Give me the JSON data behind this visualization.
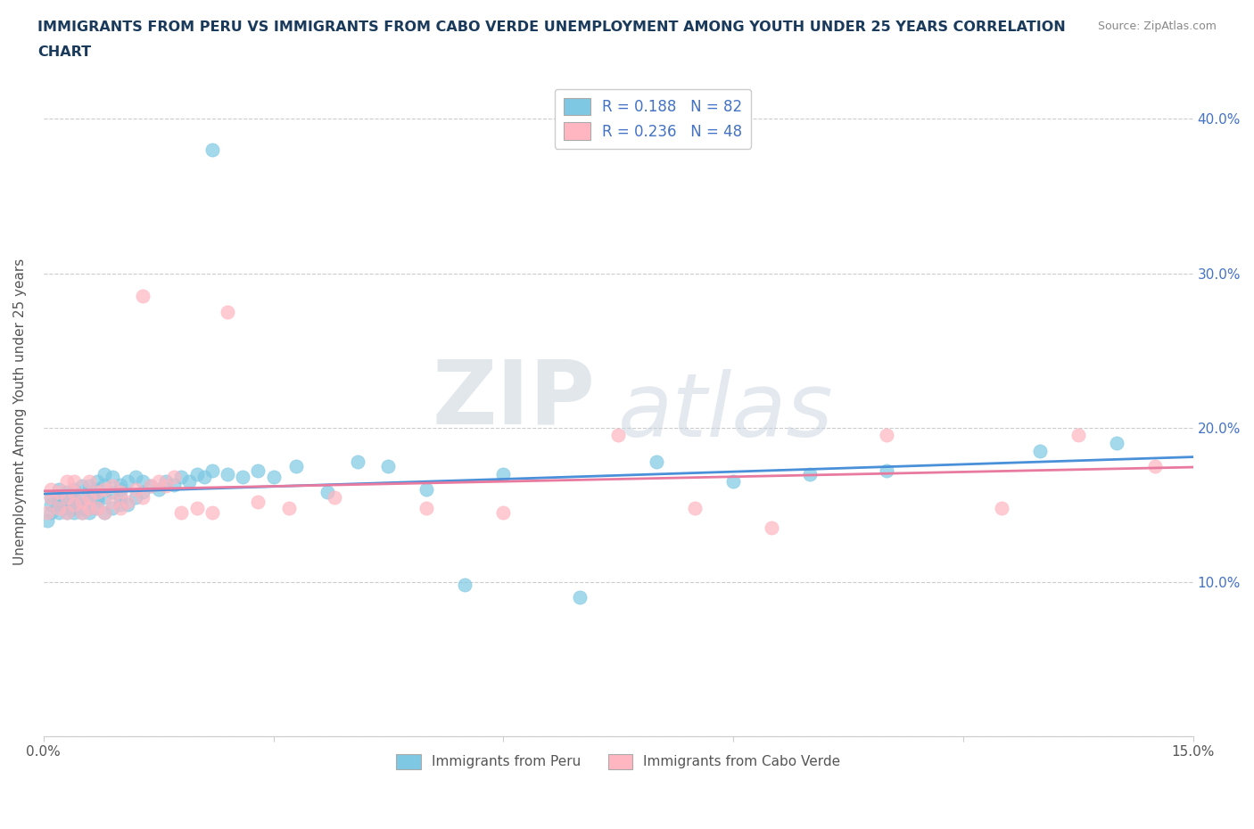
{
  "title_line1": "IMMIGRANTS FROM PERU VS IMMIGRANTS FROM CABO VERDE UNEMPLOYMENT AMONG YOUTH UNDER 25 YEARS CORRELATION",
  "title_line2": "CHART",
  "source": "Source: ZipAtlas.com",
  "ylabel": "Unemployment Among Youth under 25 years",
  "xlim": [
    0.0,
    0.15
  ],
  "ylim": [
    0.0,
    0.42
  ],
  "xtick_positions": [
    0.0,
    0.03,
    0.06,
    0.09,
    0.12,
    0.15
  ],
  "ytick_positions": [
    0.0,
    0.1,
    0.2,
    0.3,
    0.4
  ],
  "peru_R": 0.188,
  "peru_N": 82,
  "cabo_R": 0.236,
  "cabo_N": 48,
  "peru_color": "#7ec8e3",
  "cabo_color": "#ffb6c1",
  "peru_line_color": "#4a90d9",
  "cabo_line_color": "#e87a9f",
  "watermark_zip": "ZIP",
  "watermark_atlas": "atlas",
  "peru_scatter_x": [
    0.0005,
    0.001,
    0.001,
    0.001,
    0.002,
    0.002,
    0.002,
    0.002,
    0.002,
    0.002,
    0.003,
    0.003,
    0.003,
    0.003,
    0.003,
    0.003,
    0.004,
    0.004,
    0.004,
    0.004,
    0.004,
    0.004,
    0.005,
    0.005,
    0.005,
    0.005,
    0.005,
    0.006,
    0.006,
    0.006,
    0.006,
    0.006,
    0.007,
    0.007,
    0.007,
    0.007,
    0.007,
    0.008,
    0.008,
    0.008,
    0.008,
    0.009,
    0.009,
    0.009,
    0.01,
    0.01,
    0.01,
    0.01,
    0.011,
    0.011,
    0.012,
    0.012,
    0.013,
    0.013,
    0.014,
    0.015,
    0.016,
    0.017,
    0.018,
    0.019,
    0.02,
    0.021,
    0.022,
    0.024,
    0.026,
    0.028,
    0.03,
    0.033,
    0.037,
    0.041,
    0.045,
    0.05,
    0.055,
    0.06,
    0.07,
    0.08,
    0.09,
    0.1,
    0.11,
    0.13,
    0.14,
    0.022
  ],
  "peru_scatter_y": [
    0.14,
    0.15,
    0.155,
    0.145,
    0.15,
    0.155,
    0.145,
    0.15,
    0.16,
    0.155,
    0.148,
    0.153,
    0.158,
    0.145,
    0.15,
    0.155,
    0.148,
    0.153,
    0.16,
    0.155,
    0.145,
    0.15,
    0.148,
    0.155,
    0.162,
    0.145,
    0.15,
    0.148,
    0.153,
    0.158,
    0.162,
    0.145,
    0.155,
    0.148,
    0.153,
    0.16,
    0.165,
    0.145,
    0.155,
    0.163,
    0.17,
    0.148,
    0.158,
    0.168,
    0.15,
    0.16,
    0.155,
    0.163,
    0.15,
    0.165,
    0.155,
    0.168,
    0.158,
    0.165,
    0.162,
    0.16,
    0.165,
    0.163,
    0.168,
    0.165,
    0.17,
    0.168,
    0.172,
    0.17,
    0.168,
    0.172,
    0.168,
    0.175,
    0.158,
    0.178,
    0.175,
    0.16,
    0.098,
    0.17,
    0.09,
    0.178,
    0.165,
    0.17,
    0.172,
    0.185,
    0.19,
    0.38
  ],
  "cabo_scatter_x": [
    0.0005,
    0.001,
    0.001,
    0.002,
    0.002,
    0.003,
    0.003,
    0.003,
    0.004,
    0.004,
    0.004,
    0.005,
    0.005,
    0.006,
    0.006,
    0.006,
    0.007,
    0.007,
    0.008,
    0.008,
    0.009,
    0.009,
    0.01,
    0.01,
    0.011,
    0.012,
    0.013,
    0.014,
    0.015,
    0.016,
    0.017,
    0.018,
    0.02,
    0.022,
    0.024,
    0.028,
    0.032,
    0.038,
    0.05,
    0.06,
    0.075,
    0.085,
    0.095,
    0.11,
    0.125,
    0.135,
    0.145,
    0.013
  ],
  "cabo_scatter_y": [
    0.145,
    0.155,
    0.16,
    0.148,
    0.158,
    0.145,
    0.155,
    0.165,
    0.15,
    0.158,
    0.165,
    0.145,
    0.152,
    0.148,
    0.155,
    0.165,
    0.148,
    0.158,
    0.145,
    0.16,
    0.152,
    0.162,
    0.148,
    0.158,
    0.152,
    0.16,
    0.155,
    0.162,
    0.165,
    0.162,
    0.168,
    0.145,
    0.148,
    0.145,
    0.275,
    0.152,
    0.148,
    0.155,
    0.148,
    0.145,
    0.195,
    0.148,
    0.135,
    0.195,
    0.148,
    0.195,
    0.175,
    0.285
  ]
}
